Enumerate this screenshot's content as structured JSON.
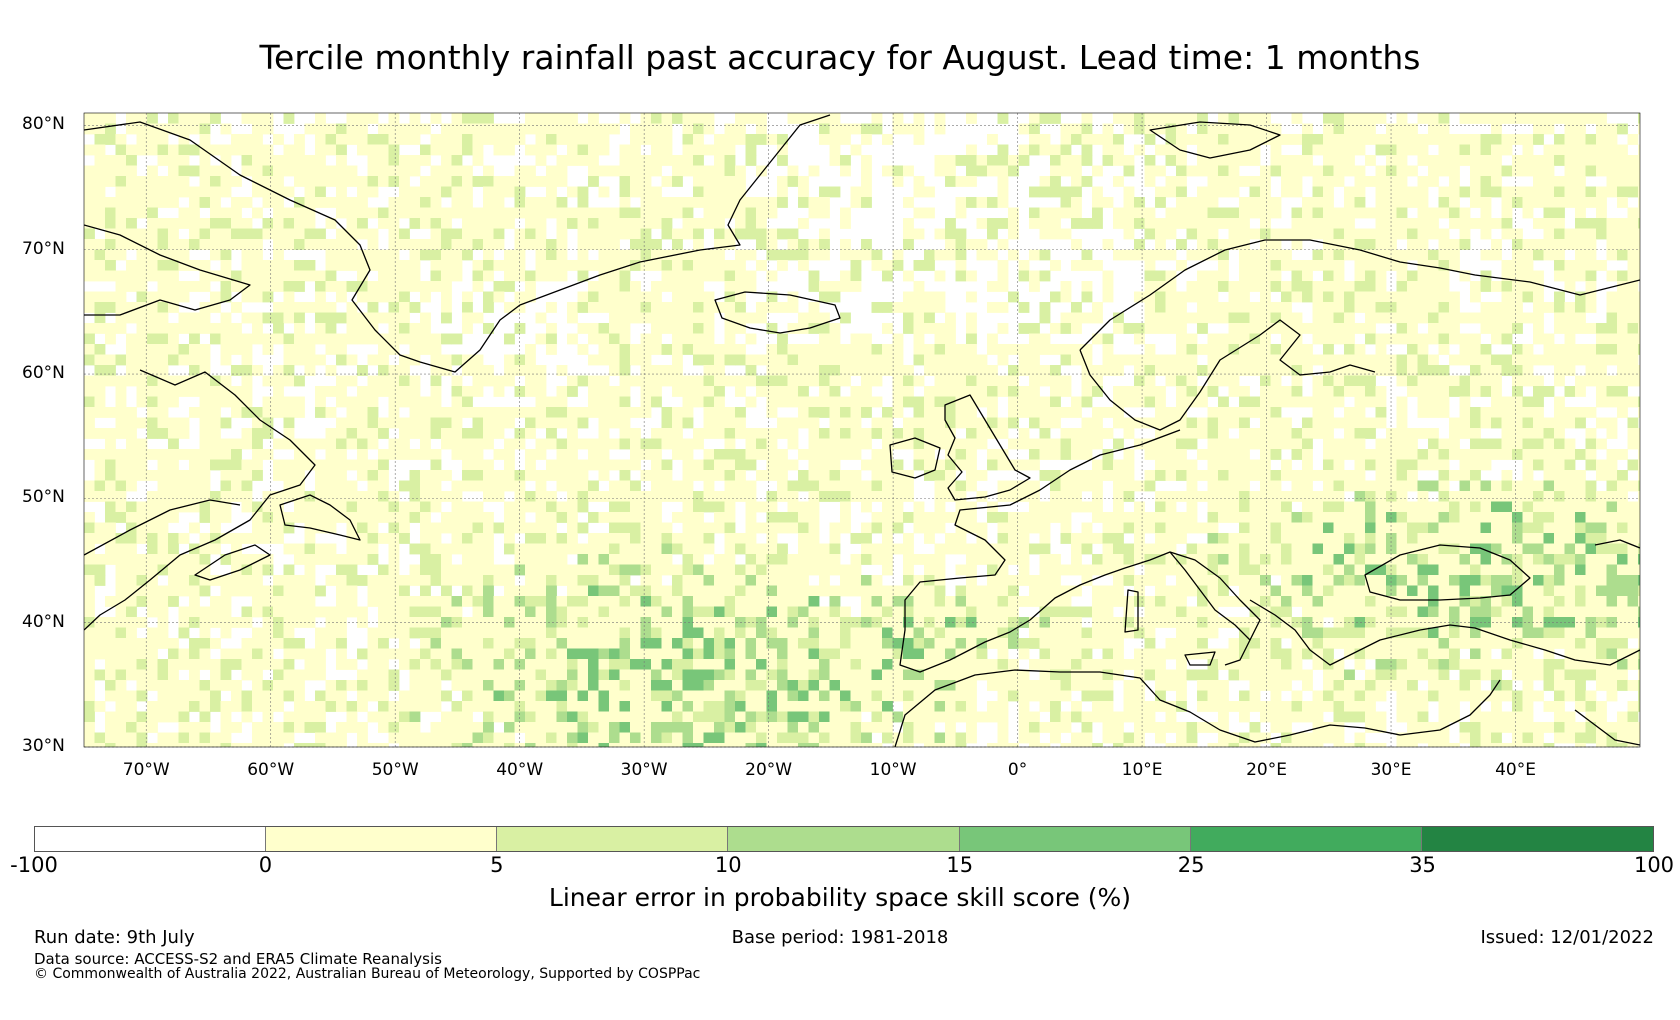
{
  "title": "Tercile monthly rainfall past accuracy for August. Lead time: 1 months",
  "map": {
    "lat_labels": [
      "80°N",
      "70°N",
      "60°N",
      "50°N",
      "40°N",
      "30°N"
    ],
    "lat_values": [
      80,
      70,
      60,
      50,
      40,
      30
    ],
    "lon_labels": [
      "70°W",
      "60°W",
      "50°W",
      "40°W",
      "30°W",
      "20°W",
      "10°W",
      "0°",
      "10°E",
      "20°E",
      "30°E",
      "40°E"
    ],
    "lon_values": [
      -70,
      -60,
      -50,
      -40,
      -30,
      -20,
      -10,
      0,
      10,
      20,
      30,
      40
    ],
    "extent": {
      "lon_min": -75,
      "lon_max": 50,
      "lat_min": 30,
      "lat_max": 81
    },
    "grid_lines": true
  },
  "colorbar": {
    "ticks": [
      "-100",
      "0",
      "5",
      "10",
      "15",
      "25",
      "35",
      "100"
    ],
    "colors": [
      "#ffffff",
      "#ffffcc",
      "#d9f0a3",
      "#addd8e",
      "#78c679",
      "#41ab5d",
      "#238443"
    ],
    "label": "Linear error in probability space skill score (%)"
  },
  "footer": {
    "run_date": "Run date: 9th July",
    "base_period": "Base period: 1981-2018",
    "issued": "Issued: 12/01/2022",
    "data_source": "Data source: ACCESS-S2 and ERA5 Climate Reanalysis",
    "copyright": "© Commonwealth of Australia 2022, Australian Bureau of Meteorology, Supported by COSPPac"
  }
}
